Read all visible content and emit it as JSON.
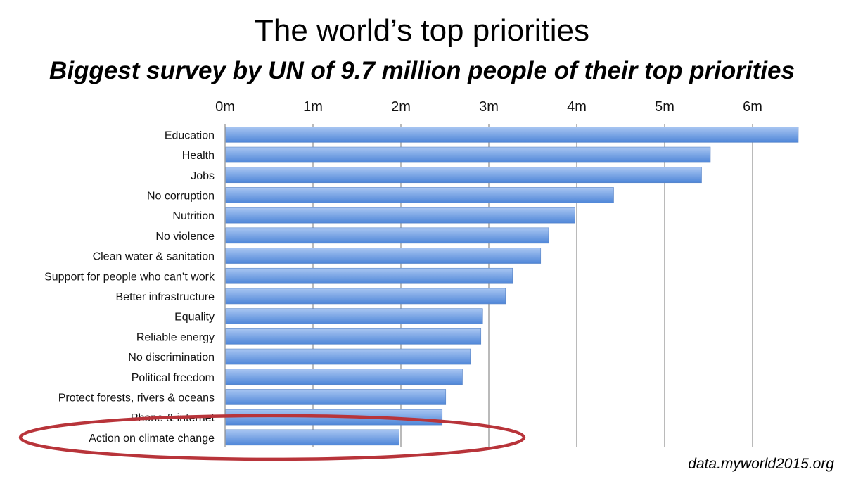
{
  "title": "The world’s top priorities",
  "subtitle": "Biggest survey by UN of 9.7 million people of their top priorities",
  "source": "data.myworld2015.org",
  "colors": {
    "bar_top": "#a9c6f2",
    "bar_bottom": "#4f86d8",
    "bar_stroke": "#5a86c6",
    "gridline": "#8c8c8c",
    "highlight_ellipse": "#b8343a"
  },
  "annotation": {
    "shape": "ellipse",
    "highlighted_category": "Action on climate change"
  },
  "chart_data": {
    "type": "bar",
    "orientation": "horizontal",
    "categories": [
      "Education",
      "Health",
      "Jobs",
      "No corruption",
      "Nutrition",
      "No violence",
      "Clean water & sanitation",
      "Support for people who can’t work",
      "Better infrastructure",
      "Equality",
      "Reliable energy",
      "No discrimination",
      "Political freedom",
      "Protect forests, rivers & oceans",
      "Phone & internet",
      "Action on climate change"
    ],
    "values": [
      6.52,
      5.52,
      5.42,
      4.42,
      3.98,
      3.68,
      3.59,
      3.27,
      3.19,
      2.93,
      2.91,
      2.79,
      2.7,
      2.51,
      2.47,
      1.98
    ],
    "unit": "m",
    "xlim": [
      0,
      6.6
    ],
    "xticks": [
      0,
      1,
      2,
      3,
      4,
      5,
      6
    ],
    "xtick_labels": [
      "0m",
      "1m",
      "2m",
      "3m",
      "4m",
      "5m",
      "6m"
    ],
    "xaxis_position": "top",
    "grid": true,
    "legend": "none"
  }
}
